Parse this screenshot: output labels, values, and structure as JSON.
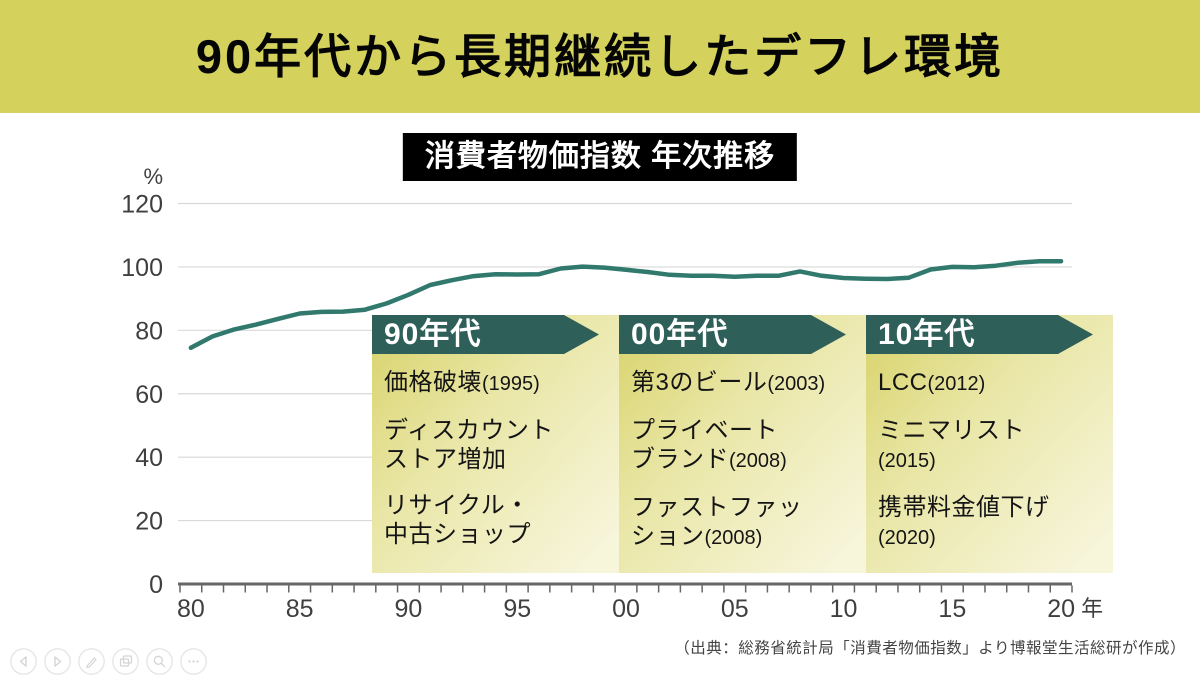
{
  "slide": {
    "title": "90年代から長期継続したデフレ環境",
    "badge": "消費者物価指数 年次推移",
    "source": "（出典：総務省統計局「消費者物価指数」より博報堂生活総研が作成）"
  },
  "chart_data": {
    "type": "line",
    "title": "消費者物価指数 年次推移",
    "ylabel": "%",
    "xlabel_suffix": "年",
    "ylim": [
      0,
      120
    ],
    "yticks": [
      0,
      20,
      40,
      60,
      80,
      100,
      120
    ],
    "ytick_labels": [
      "0",
      "20",
      "40",
      "60",
      "80",
      "100",
      "120"
    ],
    "xtick_years": [
      1980,
      1985,
      1990,
      1995,
      2000,
      2005,
      2010,
      2015,
      2020
    ],
    "xtick_labels": [
      "80",
      "85",
      "90",
      "95",
      "00",
      "05",
      "10",
      "15",
      "20"
    ],
    "grid": true,
    "legend": "none",
    "series": [
      {
        "name": "消費者物価指数",
        "x": [
          1980,
          1981,
          1982,
          1983,
          1984,
          1985,
          1986,
          1987,
          1988,
          1989,
          1990,
          1991,
          1992,
          1993,
          1994,
          1995,
          1996,
          1997,
          1998,
          1999,
          2000,
          2001,
          2002,
          2003,
          2004,
          2005,
          2006,
          2007,
          2008,
          2009,
          2010,
          2011,
          2012,
          2013,
          2014,
          2015,
          2016,
          2017,
          2018,
          2019,
          2020
        ],
        "values": [
          74.5,
          78.1,
          80.3,
          81.8,
          83.6,
          85.3,
          85.8,
          85.9,
          86.5,
          88.5,
          91.2,
          94.3,
          95.8,
          97.1,
          97.7,
          97.6,
          97.7,
          99.5,
          100.1,
          99.8,
          99.1,
          98.4,
          97.5,
          97.2,
          97.2,
          96.9,
          97.2,
          97.2,
          98.6,
          97.2,
          96.5,
          96.3,
          96.2,
          96.6,
          99.2,
          100.0,
          99.9,
          100.4,
          101.3,
          101.8,
          101.8
        ]
      }
    ]
  },
  "decades": [
    {
      "label": "90年代",
      "items": [
        [
          "価格破壊(1995)"
        ],
        [
          "ディスカウント",
          "ストア増加"
        ],
        [
          "リサイクル・",
          "中古ショップ"
        ]
      ]
    },
    {
      "label": "00年代",
      "items": [
        [
          "第3のビール(2003)"
        ],
        [
          "プライベート",
          "ブランド(2008)"
        ],
        [
          "ファストファッ",
          "ション(2008)"
        ]
      ]
    },
    {
      "label": "10年代",
      "items": [
        [
          "LCC(2012)"
        ],
        [
          "ミニマリスト",
          "(2015)"
        ],
        [
          "携帯料金値下げ",
          "(2020)"
        ]
      ]
    }
  ],
  "toolbar": {
    "buttons": [
      "previous slide",
      "next slide",
      "pen",
      "slides overview",
      "zoom",
      "more options"
    ]
  },
  "colors": {
    "banner_bg": "#d4d25c",
    "badge_bg": "#000000",
    "line": "#31796d",
    "decade_header_bg": "#2e5f58",
    "box_gradient_start": "#d7d268",
    "box_gradient_end": "#f7f5da",
    "gridline": "#d9d9d9",
    "axis": "#666666",
    "axis_text": "#3f3f3f"
  }
}
